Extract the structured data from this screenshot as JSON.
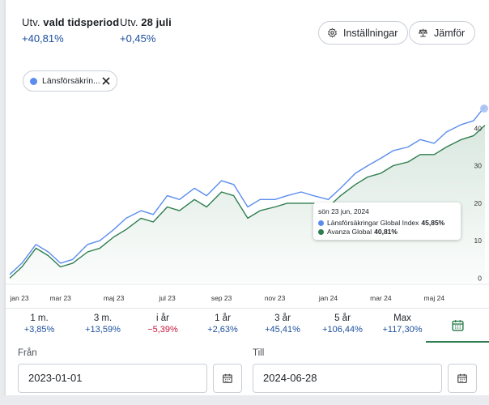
{
  "stats": {
    "period": {
      "label_prefix": "Utv.",
      "label_bold": "vald tidsperiod",
      "value": "+40,81%"
    },
    "day": {
      "label_prefix": "Utv.",
      "label_bold": "28 juli",
      "value": "+0,45%"
    }
  },
  "buttons": {
    "settings": {
      "label": "Inställningar",
      "icon": "gear-icon"
    },
    "compare": {
      "label": "Jämför",
      "icon": "scale-icon"
    }
  },
  "chip": {
    "label": "Länsförsäkrin...",
    "color": "#5b8def"
  },
  "tooltip": {
    "date": "sön 23 jun, 2024",
    "rows": [
      {
        "name": "Länsförsäkringar Global Index",
        "value": "45,85%",
        "color": "#5b8def"
      },
      {
        "name": "Avanza Global",
        "value": "40,81%",
        "color": "#2e7d4f"
      }
    ]
  },
  "periods": [
    {
      "label": "1 m.",
      "value": "+3,85%",
      "sign": "pos"
    },
    {
      "label": "3 m.",
      "value": "+13,59%",
      "sign": "pos"
    },
    {
      "label": "i år",
      "value": "−5,39%",
      "sign": "neg"
    },
    {
      "label": "1 år",
      "value": "+2,63%",
      "sign": "pos"
    },
    {
      "label": "3 år",
      "value": "+45,41%",
      "sign": "pos"
    },
    {
      "label": "5 år",
      "value": "+106,44%",
      "sign": "pos"
    },
    {
      "label": "Max",
      "value": "+117,30%",
      "sign": "pos"
    }
  ],
  "calendar_tab": {
    "icon": "calendar-icon"
  },
  "from": {
    "label": "Från",
    "value": "2023-01-01"
  },
  "to": {
    "label": "Till",
    "value": "2024-06-28"
  },
  "colors": {
    "positive": "#1c4f9c",
    "negative": "#c4183c",
    "series_blue": "#5b8def",
    "series_green": "#2e7d4f",
    "accent": "#2e7d4f"
  },
  "chart_data": {
    "type": "line",
    "x_ticks": [
      "jan 23",
      "mar 23",
      "maj 23",
      "jul 23",
      "sep 23",
      "nov 23",
      "jan 24",
      "mar 24",
      "maj 24"
    ],
    "y_ticks": [
      "0",
      "10",
      "20",
      "30",
      "40"
    ],
    "ylim": [
      -1,
      47
    ],
    "x": [
      "2023-01-02",
      "2023-01-16",
      "2023-02-01",
      "2023-02-15",
      "2023-03-01",
      "2023-03-15",
      "2023-04-01",
      "2023-04-15",
      "2023-05-01",
      "2023-05-15",
      "2023-06-01",
      "2023-06-15",
      "2023-07-01",
      "2023-07-15",
      "2023-08-01",
      "2023-08-15",
      "2023-09-01",
      "2023-09-15",
      "2023-10-01",
      "2023-10-15",
      "2023-11-01",
      "2023-11-15",
      "2023-12-01",
      "2023-12-15",
      "2024-01-01",
      "2024-01-15",
      "2024-02-01",
      "2024-02-15",
      "2024-03-01",
      "2024-03-15",
      "2024-04-01",
      "2024-04-15",
      "2024-05-01",
      "2024-05-15",
      "2024-06-01",
      "2024-06-15",
      "2024-06-28"
    ],
    "series": [
      {
        "name": "Länsförsäkringar Global Index",
        "color": "#5b8def",
        "values": [
          1,
          4,
          9,
          7,
          4,
          5,
          9,
          10,
          13,
          16,
          18,
          17,
          22,
          21,
          24,
          22,
          26,
          25,
          19,
          21,
          21,
          22,
          23,
          22,
          21,
          24,
          28,
          30,
          32,
          34,
          35,
          37,
          36,
          39,
          41,
          42,
          45.85
        ]
      },
      {
        "name": "Avanza Global",
        "color": "#2e7d4f",
        "values": [
          0,
          3,
          8,
          6,
          3,
          4,
          7,
          8,
          11,
          13,
          16,
          15,
          19,
          18,
          21,
          19,
          23,
          22,
          16,
          18,
          19,
          20,
          20,
          20,
          19,
          22,
          25,
          27,
          28,
          30,
          31,
          33,
          33,
          35,
          37,
          38,
          40.81
        ]
      }
    ]
  }
}
